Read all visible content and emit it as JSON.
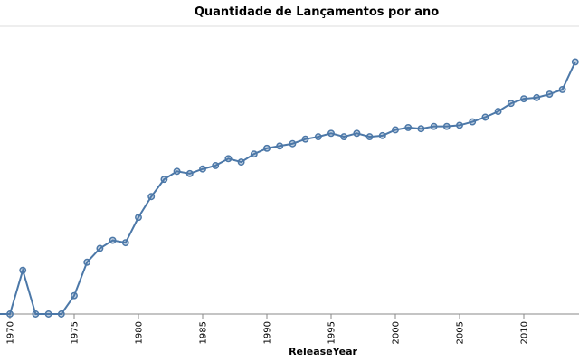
{
  "colors": {
    "series": "#4c78a8",
    "axis": "#888888",
    "gridline": "#dddddd"
  },
  "chart_data": {
    "type": "line",
    "title": "Quantidade de Lançamentos por ano",
    "xlabel": "ReleaseYear",
    "ylabel": "",
    "x": [
      1970,
      1971,
      1972,
      1973,
      1974,
      1975,
      1976,
      1977,
      1978,
      1979,
      1980,
      1981,
      1982,
      1983,
      1984,
      1985,
      1986,
      1987,
      1988,
      1989,
      1990,
      1991,
      1992,
      1993,
      1994,
      1995,
      1996,
      1997,
      1998,
      1999,
      2000,
      2001,
      2002,
      2003,
      2004,
      2005,
      2006,
      2007,
      2008,
      2009,
      2010,
      2011,
      2012,
      2013,
      2014
    ],
    "values": [
      0,
      38,
      0,
      0,
      0,
      16,
      45,
      57,
      64,
      62,
      84,
      102,
      117,
      124,
      122,
      126,
      129,
      135,
      132,
      139,
      144,
      146,
      148,
      152,
      154,
      157,
      154,
      157,
      154,
      155,
      160,
      162,
      161,
      163,
      163,
      164,
      167,
      171,
      176,
      183,
      187,
      188,
      191,
      195,
      219
    ],
    "x_start": 1969,
    "xlim": [
      1969,
      2014
    ],
    "ylim": [
      0,
      250
    ],
    "x_ticks": [
      1970,
      1975,
      1980,
      1985,
      1990,
      1995,
      2000,
      2005,
      2010
    ],
    "x_tick_labels": [
      "1970",
      "1975",
      "1980",
      "1985",
      "1990",
      "1995",
      "2000",
      "2005",
      "2010"
    ],
    "grid": false
  }
}
